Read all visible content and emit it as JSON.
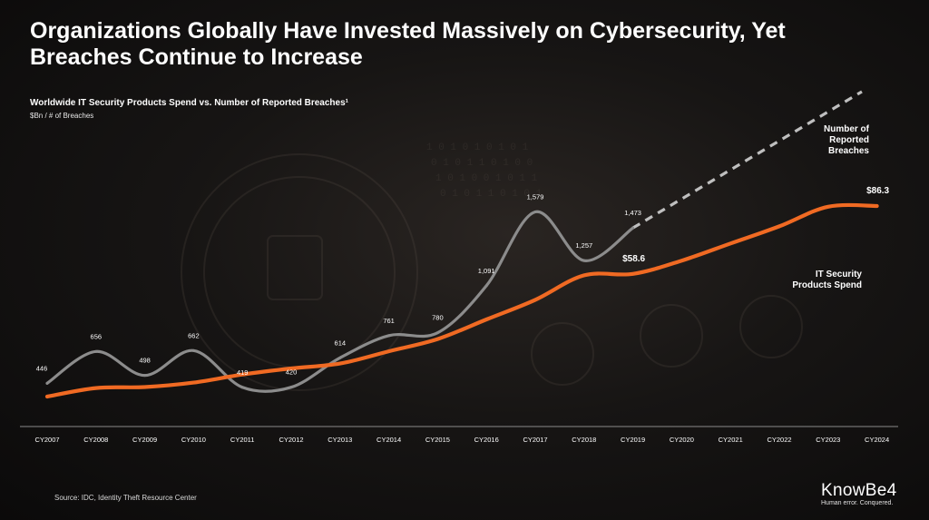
{
  "title": "Organizations Globally Have Invested Massively on Cybersecurity, Yet Breaches Continue to Increase",
  "subtitle": "Worldwide IT Security Products Spend vs. Number of Reported Breaches¹",
  "units": "$Bn / # of Breaches",
  "source": "Source: IDC, Identity Theft Resource Center",
  "logo": {
    "name": "KnowBe4",
    "tagline": "Human error. Conquered."
  },
  "annotations": {
    "breaches_label": "Number of Reported Breaches",
    "spend_label": "IT Security Products Spend"
  },
  "colors": {
    "breaches": "#8c8c8c",
    "breaches_projection": "#bfbfbf",
    "spend": "#f06a23",
    "background": "#141212"
  },
  "chart_data": {
    "type": "line",
    "categories": [
      "CY2007",
      "CY2008",
      "CY2009",
      "CY2010",
      "CY2011",
      "CY2012",
      "CY2013",
      "CY2014",
      "CY2015",
      "CY2016",
      "CY2017",
      "CY2018",
      "CY2019",
      "CY2020",
      "CY2021",
      "CY2022",
      "CY2023",
      "CY2024"
    ],
    "series": [
      {
        "name": "Number of Reported Breaches",
        "unit": "# of Breaches",
        "values": [
          446,
          656,
          498,
          662,
          419,
          420,
          614,
          761,
          780,
          1091,
          1579,
          1257,
          1473,
          null,
          null,
          null,
          null,
          null
        ],
        "data_labels": [
          "446",
          "656",
          "498",
          "662",
          "419",
          "420",
          "614",
          "761",
          "780",
          "1,091",
          "1,579",
          "1,257",
          "1,473",
          "",
          "",
          "",
          "",
          ""
        ],
        "projection": "dashed trend line from CY2019 upward to CY2024"
      },
      {
        "name": "IT Security Products Spend",
        "unit": "$Bn",
        "values": [
          8.5,
          12,
          12.4,
          14.2,
          17.5,
          20,
          22,
          27,
          32,
          40,
          48,
          58,
          58.6,
          64,
          71,
          78,
          86,
          86.3
        ],
        "data_labels": {
          "CY2019": "$58.6",
          "CY2024": "$86.3"
        }
      }
    ],
    "grid": false,
    "legend": "inline labels at right"
  }
}
